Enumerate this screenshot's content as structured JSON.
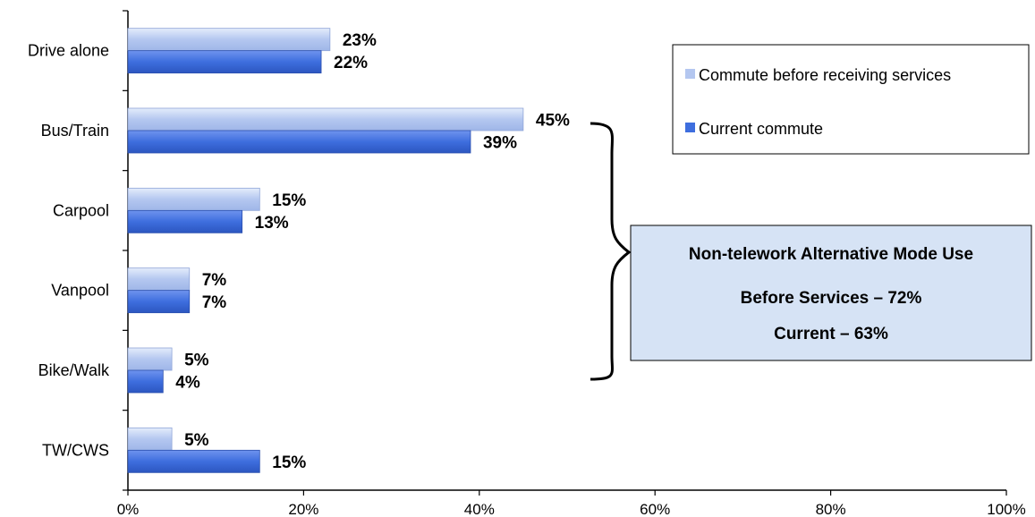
{
  "chart_data": {
    "type": "bar",
    "orientation": "horizontal",
    "categories": [
      "Drive alone",
      "Bus/Train",
      "Carpool",
      "Vanpool",
      "Bike/Walk",
      "TW/CWS"
    ],
    "series": [
      {
        "name": "Commute before receiving services",
        "values": [
          23,
          45,
          15,
          7,
          5,
          5
        ],
        "labels": [
          "23%",
          "45%",
          "15%",
          "7%",
          "5%",
          "5%"
        ],
        "color": "#b4c7f0"
      },
      {
        "name": "Current commute",
        "values": [
          22,
          39,
          13,
          7,
          4,
          15
        ],
        "labels": [
          "22%",
          "39%",
          "13%",
          "7%",
          "4%",
          "15%"
        ],
        "color": "#3e6ede"
      }
    ],
    "xlim": [
      0,
      100
    ],
    "xticks": [
      0,
      20,
      40,
      60,
      80,
      100
    ],
    "xtick_labels": [
      "0%",
      "20%",
      "40%",
      "60%",
      "80%",
      "100%"
    ],
    "grid": false,
    "legend_position": "top-right",
    "annotation": {
      "lines": [
        "Non-telework Alternative Mode Use",
        "Before Services – 72%",
        "Current – 63%"
      ],
      "bracket_spans": [
        "Bus/Train",
        "Carpool",
        "Vanpool",
        "Bike/Walk"
      ],
      "background": "#d6e3f5"
    }
  }
}
